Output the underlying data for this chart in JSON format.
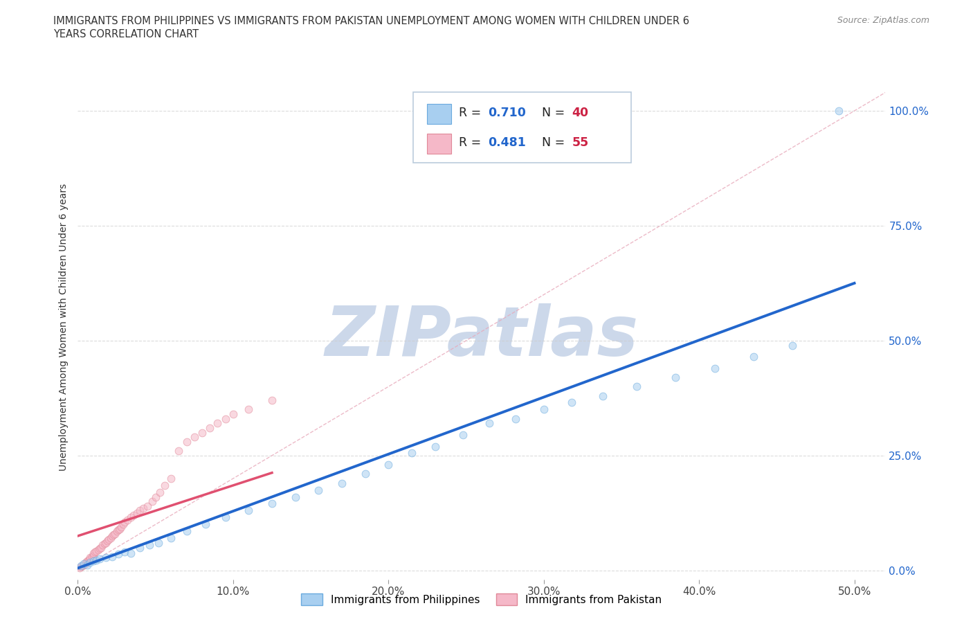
{
  "title_line1": "IMMIGRANTS FROM PHILIPPINES VS IMMIGRANTS FROM PAKISTAN UNEMPLOYMENT AMONG WOMEN WITH CHILDREN UNDER 6",
  "title_line2": "YEARS CORRELATION CHART",
  "source": "Source: ZipAtlas.com",
  "ylabel": "Unemployment Among Women with Children Under 6 years",
  "xlim": [
    0.0,
    0.52
  ],
  "ylim": [
    -0.02,
    1.08
  ],
  "xtick_labels": [
    "0.0%",
    "10.0%",
    "20.0%",
    "30.0%",
    "40.0%",
    "50.0%"
  ],
  "xtick_vals": [
    0.0,
    0.1,
    0.2,
    0.3,
    0.4,
    0.5
  ],
  "ytick_labels_right": [
    "0.0%",
    "25.0%",
    "50.0%",
    "75.0%",
    "100.0%"
  ],
  "ytick_vals": [
    0.0,
    0.25,
    0.5,
    0.75,
    1.0
  ],
  "grid_color": "#cccccc",
  "background_color": "#ffffff",
  "watermark": "ZIPatlas",
  "watermark_color": "#ccd8ea",
  "philippines_color": "#a8cff0",
  "philippines_edge": "#6aaade",
  "philippines_trend_color": "#2266cc",
  "philippines_R": 0.71,
  "philippines_N": 40,
  "philippines_x": [
    0.002,
    0.004,
    0.006,
    0.008,
    0.01,
    0.012,
    0.014,
    0.018,
    0.022,
    0.026,
    0.03,
    0.034,
    0.04,
    0.046,
    0.052,
    0.06,
    0.07,
    0.082,
    0.095,
    0.11,
    0.125,
    0.14,
    0.155,
    0.17,
    0.185,
    0.2,
    0.215,
    0.23,
    0.248,
    0.265,
    0.282,
    0.3,
    0.318,
    0.338,
    0.36,
    0.385,
    0.41,
    0.435,
    0.46,
    0.49
  ],
  "philippines_y": [
    0.01,
    0.015,
    0.012,
    0.018,
    0.02,
    0.022,
    0.025,
    0.028,
    0.03,
    0.035,
    0.04,
    0.038,
    0.05,
    0.055,
    0.06,
    0.07,
    0.085,
    0.1,
    0.115,
    0.13,
    0.145,
    0.16,
    0.175,
    0.19,
    0.21,
    0.23,
    0.255,
    0.27,
    0.295,
    0.32,
    0.33,
    0.35,
    0.365,
    0.38,
    0.4,
    0.42,
    0.44,
    0.465,
    0.49,
    1.0
  ],
  "pakistan_color": "#f5b8c8",
  "pakistan_edge": "#e08898",
  "pakistan_trend_color": "#e05070",
  "pakistan_R": 0.481,
  "pakistan_N": 55,
  "pakistan_x": [
    0.001,
    0.002,
    0.003,
    0.004,
    0.005,
    0.005,
    0.006,
    0.007,
    0.008,
    0.008,
    0.009,
    0.01,
    0.01,
    0.011,
    0.012,
    0.013,
    0.014,
    0.015,
    0.016,
    0.017,
    0.018,
    0.019,
    0.02,
    0.021,
    0.022,
    0.023,
    0.024,
    0.025,
    0.026,
    0.027,
    0.028,
    0.029,
    0.03,
    0.032,
    0.034,
    0.036,
    0.038,
    0.04,
    0.042,
    0.045,
    0.048,
    0.05,
    0.053,
    0.056,
    0.06,
    0.065,
    0.07,
    0.075,
    0.08,
    0.085,
    0.09,
    0.095,
    0.1,
    0.11,
    0.125
  ],
  "pakistan_y": [
    0.005,
    0.008,
    0.01,
    0.012,
    0.015,
    0.018,
    0.02,
    0.022,
    0.025,
    0.028,
    0.03,
    0.032,
    0.038,
    0.04,
    0.042,
    0.045,
    0.048,
    0.05,
    0.055,
    0.058,
    0.06,
    0.065,
    0.068,
    0.07,
    0.075,
    0.078,
    0.08,
    0.085,
    0.088,
    0.09,
    0.095,
    0.1,
    0.105,
    0.11,
    0.115,
    0.12,
    0.125,
    0.13,
    0.135,
    0.14,
    0.15,
    0.16,
    0.17,
    0.185,
    0.2,
    0.26,
    0.28,
    0.29,
    0.3,
    0.31,
    0.32,
    0.33,
    0.34,
    0.35,
    0.37
  ],
  "legend_philippines": "Immigrants from Philippines",
  "legend_pakistan": "Immigrants from Pakistan",
  "legend_R_color": "#2266cc",
  "legend_N_color": "#cc2244",
  "marker_size": 60,
  "marker_alpha": 0.55,
  "diag_color": "#e8aabb",
  "diag_linestyle": "--"
}
